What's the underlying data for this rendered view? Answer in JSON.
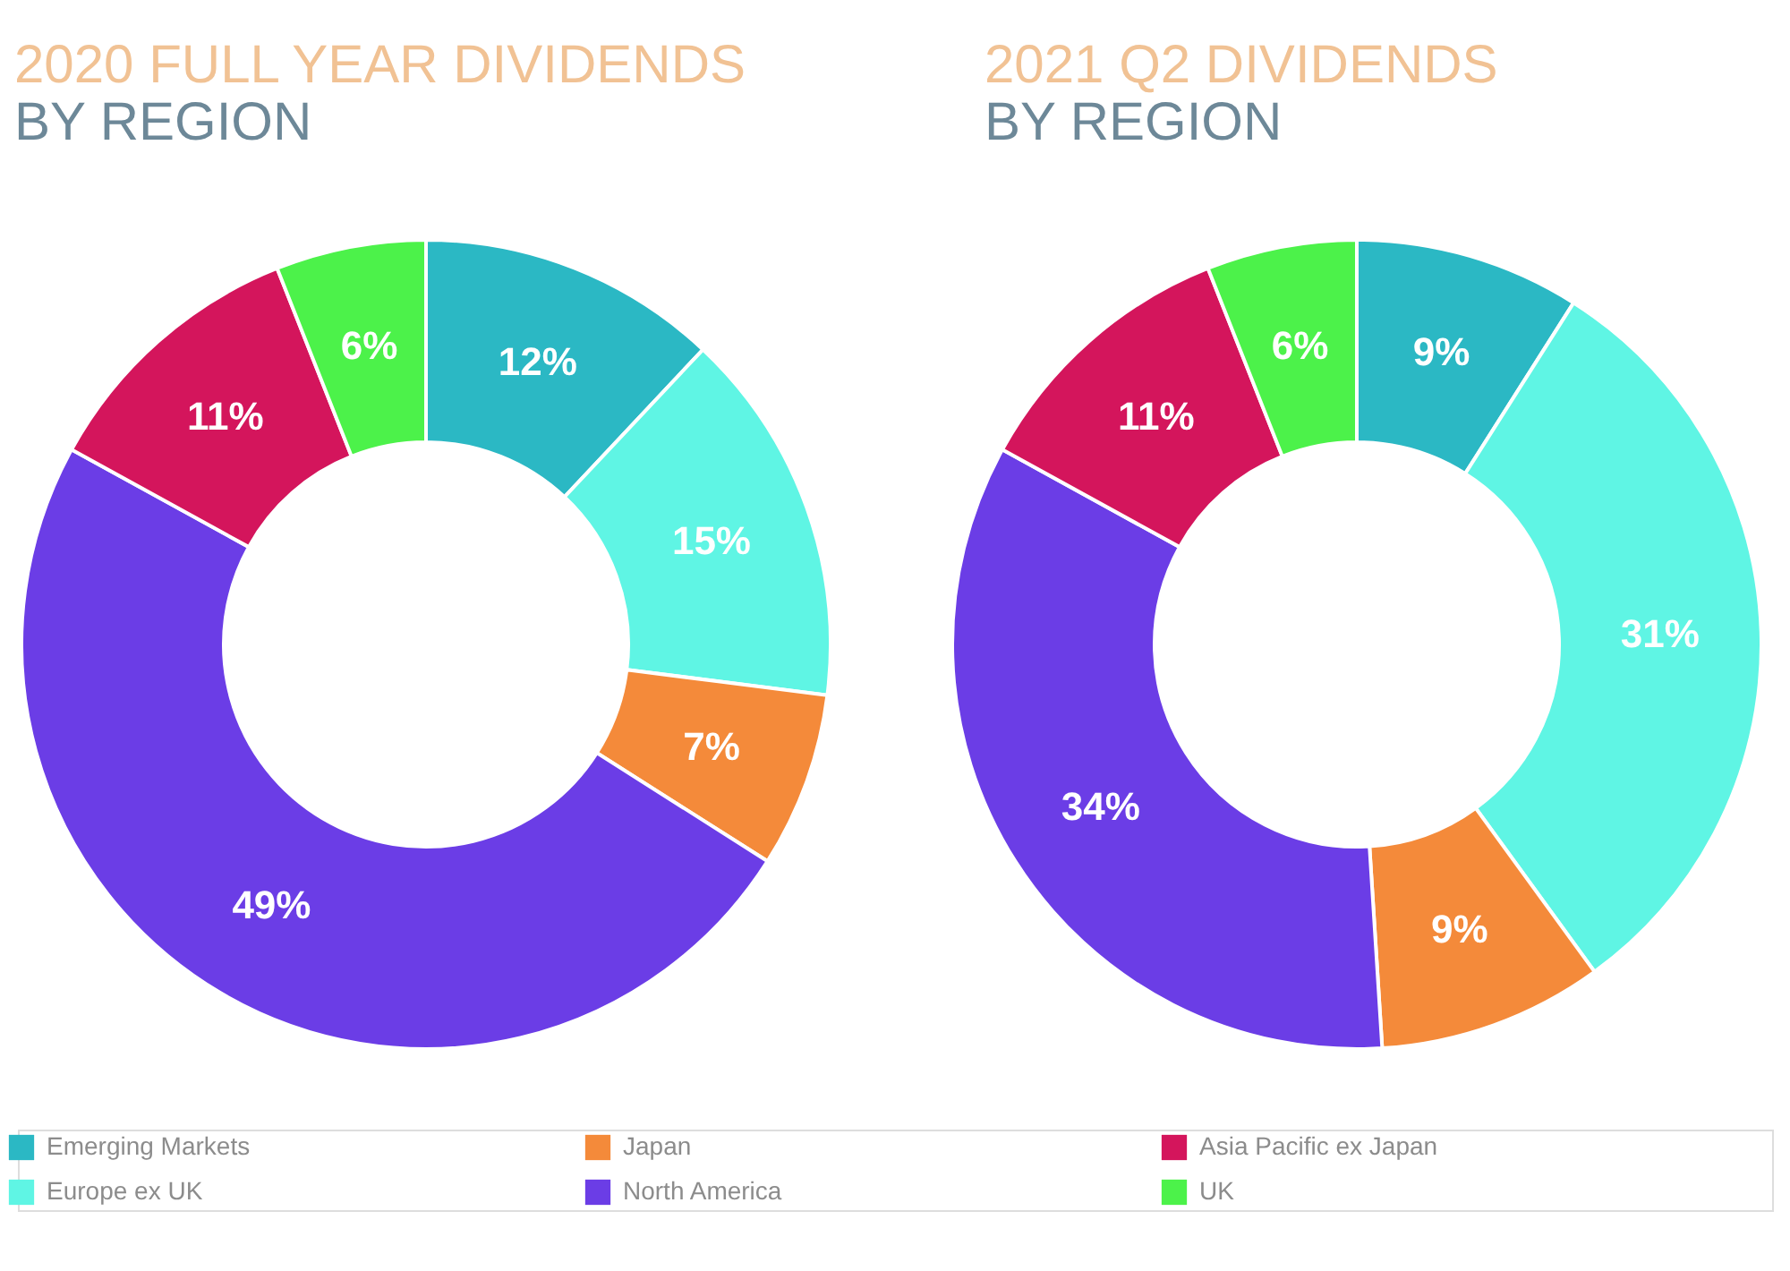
{
  "chart_data": [
    {
      "type": "donut",
      "title": "2020 FULL YEAR DIVIDENDS",
      "subtitle": "BY REGION",
      "categories": [
        "Emerging Markets",
        "Europe ex UK",
        "Japan",
        "North America",
        "Asia Pacific ex Japan",
        "UK"
      ],
      "values": [
        12,
        15,
        7,
        49,
        11,
        6
      ],
      "value_labels": [
        "12%",
        "15%",
        "7%",
        "49%",
        "11%",
        "6%"
      ],
      "colors": [
        "#2bb8c4",
        "#5ff5e4",
        "#f48a3a",
        "#6b3de6",
        "#d4155c",
        "#4cf24a"
      ],
      "legend": "bottom"
    },
    {
      "type": "donut",
      "title": "2021 Q2 DIVIDENDS",
      "subtitle": "BY REGION",
      "categories": [
        null,
        null,
        null,
        null,
        null,
        null
      ],
      "values": [
        9,
        31,
        9,
        34,
        11,
        6
      ],
      "value_labels": [
        "9%",
        "31%",
        "9%",
        "34%",
        "11%",
        "6%"
      ],
      "colors": [
        "#2bb8c4",
        "#5ff5e4",
        "#f48a3a",
        "#6b3de6",
        "#d4155c",
        "#4cf24a"
      ]
    }
  ]
}
